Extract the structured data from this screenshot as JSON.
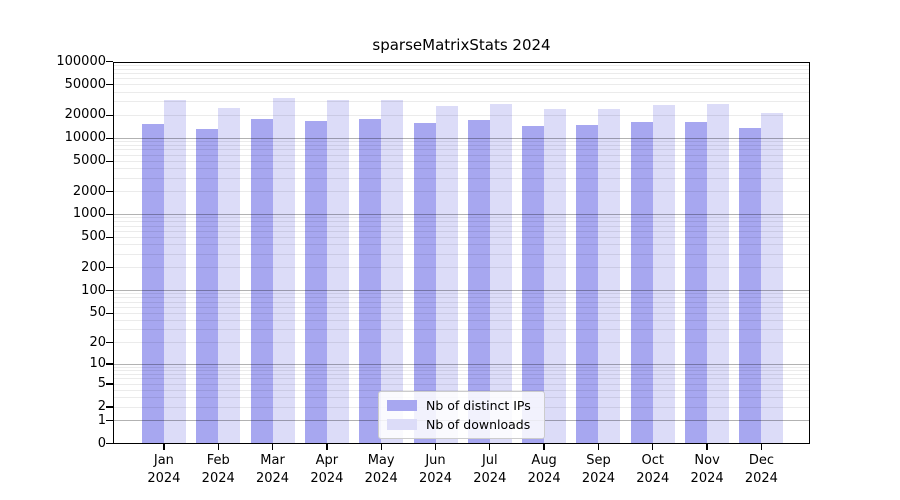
{
  "chart_data": {
    "type": "bar",
    "title": "sparseMatrixStats 2024",
    "year": "2024",
    "categories": [
      "Jan",
      "Feb",
      "Mar",
      "Apr",
      "May",
      "Jun",
      "Jul",
      "Aug",
      "Sep",
      "Oct",
      "Nov",
      "Dec"
    ],
    "series": [
      {
        "name": "Nb of distinct IPs",
        "color": "#a7a7f0",
        "values": [
          15200,
          13300,
          17700,
          16800,
          18100,
          15600,
          17100,
          14400,
          14800,
          16400,
          16200,
          13600
        ]
      },
      {
        "name": "Nb of downloads",
        "color": "#dcdcf8",
        "values": [
          31500,
          24500,
          33600,
          31800,
          31200,
          26200,
          27900,
          23800,
          23800,
          27000,
          28200,
          21300
        ]
      }
    ],
    "y_ticks": [
      100000,
      50000,
      20000,
      10000,
      5000,
      2000,
      1000,
      500,
      200,
      100,
      50,
      20,
      10,
      5,
      2,
      1,
      0
    ],
    "y_scale": "log10(value+1)",
    "ylim": [
      0,
      100000
    ],
    "grid": "horizontal-minor-log",
    "legend_position": "bottom-center-inside",
    "colors": {
      "plot_border": "#000000",
      "grid_minor": "rgba(0,0,0,0.08)",
      "grid_decade": "rgba(0,0,0,0.30)"
    }
  }
}
